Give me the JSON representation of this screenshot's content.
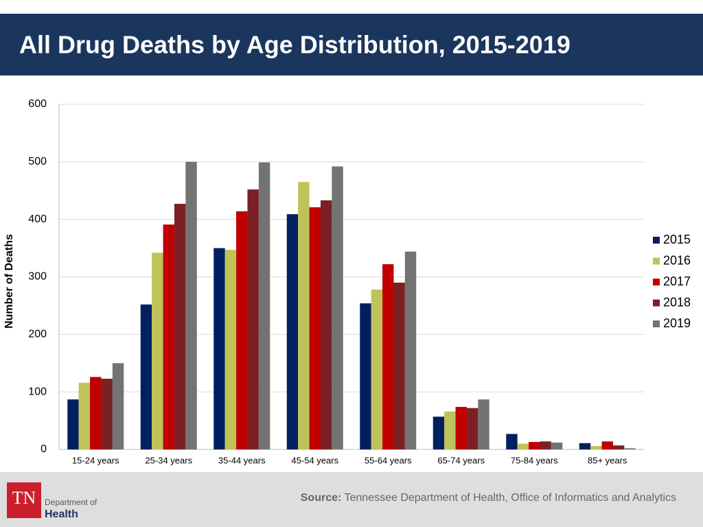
{
  "chart_data": {
    "type": "bar",
    "title": "All Drug Deaths by Age Distribution, 2015-2019",
    "y_label": "Number of Deaths",
    "categories": [
      "15-24 years",
      "25-34 years",
      "35-44 years",
      "45-54 years",
      "55-64 years",
      "65-74 years",
      "75-84 years",
      "85+ years"
    ],
    "series": [
      {
        "name": "2015",
        "color": "#002060",
        "values": [
          87,
          252,
          350,
          409,
          254,
          57,
          27,
          11
        ]
      },
      {
        "name": "2016",
        "color": "#bfc35a",
        "values": [
          116,
          342,
          347,
          465,
          278,
          66,
          10,
          6
        ]
      },
      {
        "name": "2017",
        "color": "#c00000",
        "values": [
          126,
          391,
          414,
          421,
          322,
          74,
          13,
          14
        ]
      },
      {
        "name": "2018",
        "color": "#7b2025",
        "values": [
          123,
          427,
          452,
          433,
          290,
          72,
          14,
          7
        ]
      },
      {
        "name": "2019",
        "color": "#737373",
        "values": [
          150,
          500,
          499,
          492,
          344,
          87,
          12,
          2
        ]
      }
    ],
    "ylim": [
      0,
      600
    ],
    "yticks": [
      0,
      100,
      200,
      300,
      400,
      500,
      600
    ],
    "grid": true,
    "legend": "right"
  },
  "footer": {
    "source_label": "Source:",
    "source": "Tennessee Department of Health, Office of Informatics and Analytics",
    "logo_mark": "TN",
    "logo_line1": "Department of",
    "logo_line2": "Health"
  }
}
